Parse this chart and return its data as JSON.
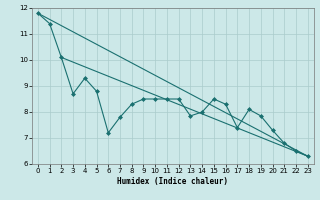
{
  "xlabel": "Humidex (Indice chaleur)",
  "ylabel": "",
  "bg_color": "#cce8e8",
  "grid_color": "#aacccc",
  "line_color": "#1a7070",
  "xlim": [
    -0.5,
    23.5
  ],
  "ylim": [
    6,
    12
  ],
  "yticks": [
    6,
    7,
    8,
    9,
    10,
    11,
    12
  ],
  "xticks": [
    0,
    1,
    2,
    3,
    4,
    5,
    6,
    7,
    8,
    9,
    10,
    11,
    12,
    13,
    14,
    15,
    16,
    17,
    18,
    19,
    20,
    21,
    22,
    23
  ],
  "line1_x": [
    0,
    23
  ],
  "line1_y": [
    11.8,
    6.3
  ],
  "line2_x": [
    2,
    23
  ],
  "line2_y": [
    10.1,
    6.3
  ],
  "line3_x": [
    0,
    1,
    2,
    3,
    4,
    5,
    6,
    7,
    8,
    9,
    10,
    11,
    12,
    13,
    14,
    15,
    16,
    17,
    18,
    19,
    20,
    21,
    22,
    23
  ],
  "line3_y": [
    11.8,
    11.4,
    10.1,
    8.7,
    9.3,
    8.8,
    7.2,
    7.8,
    8.3,
    8.5,
    8.5,
    8.5,
    8.5,
    7.85,
    8.0,
    8.5,
    8.3,
    7.4,
    8.1,
    7.85,
    7.3,
    6.8,
    6.5,
    6.3
  ],
  "marker": "D",
  "markersize": 2.0,
  "linewidth": 0.8,
  "tick_fontsize": 5.0,
  "xlabel_fontsize": 5.5
}
